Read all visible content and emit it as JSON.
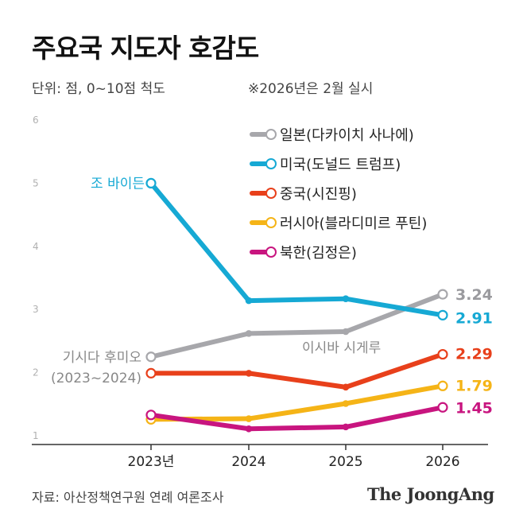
{
  "header": {
    "title": "주요국 지도자 호감도",
    "unit": "단위: 점, 0~10점 척도",
    "note": "※2026년은 2월 실시"
  },
  "footer": {
    "source": "자료: 아산정책연구원 연례 여론조사",
    "brand": "The JoongAng"
  },
  "chart_data": {
    "type": "line",
    "title": "주요국 지도자 호감도",
    "x": [
      "2023년",
      "2024",
      "2025",
      "2026"
    ],
    "ylim": [
      1,
      6
    ],
    "yticks": [
      "1",
      "2",
      "3",
      "4",
      "5",
      "6"
    ],
    "grid": false,
    "legend_position": "top-right",
    "series": [
      {
        "name": "일본(다카이치 사나에)",
        "color": "#a7a7ab",
        "values": [
          2.25,
          2.62,
          2.65,
          3.24
        ],
        "end_label": "3.24"
      },
      {
        "name": "미국(도널드 트럼프)",
        "color": "#16a9d4",
        "values": [
          5.0,
          3.14,
          3.17,
          2.91
        ],
        "end_label": "2.91"
      },
      {
        "name": "중국(시진핑)",
        "color": "#e8401b",
        "values": [
          1.99,
          1.99,
          1.77,
          2.29
        ],
        "end_label": "2.29"
      },
      {
        "name": "러시아(블라디미르 푸틴)",
        "color": "#f5b417",
        "values": [
          1.26,
          1.27,
          1.51,
          1.79
        ],
        "end_label": "1.79"
      },
      {
        "name": "북한(김정은)",
        "color": "#c8157f",
        "values": [
          1.33,
          1.11,
          1.14,
          1.45
        ],
        "end_label": "1.45"
      }
    ],
    "annotations": [
      {
        "text": "조 바이든",
        "series": 1,
        "color": "#16a9d4"
      },
      {
        "text": "기시다 후미오",
        "series": 0,
        "color": "#888888"
      },
      {
        "text": "(2023~2024)",
        "series": 0,
        "color": "#888888"
      },
      {
        "text": "이시바 시게루",
        "series": 0,
        "color": "#888888"
      }
    ]
  }
}
